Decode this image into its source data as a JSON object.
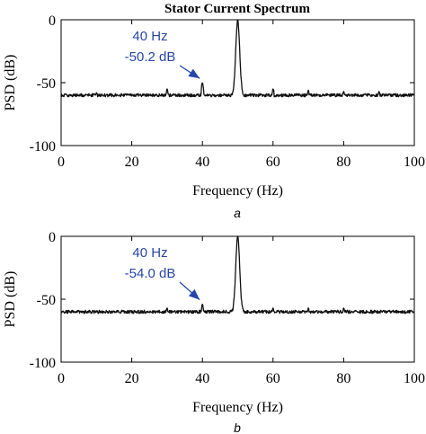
{
  "figure_title": "Stator Current Spectrum",
  "colors": {
    "trace": "#111111",
    "annotation": "#2747a8",
    "axes": "#000000"
  },
  "chart_data": [
    {
      "type": "line",
      "panel_label": "a",
      "xlabel": "Frequency (Hz)",
      "ylabel": "PSD (dB)",
      "xlim": [
        0,
        100
      ],
      "ylim": [
        -100,
        0
      ],
      "xticks": [
        0,
        20,
        40,
        60,
        80,
        100
      ],
      "yticks": [
        0,
        -50,
        -100
      ],
      "xtick_labels": [
        "0",
        "20",
        "40",
        "60",
        "80",
        "100"
      ],
      "ytick_labels": [
        "0",
        "-50",
        "-100"
      ],
      "grid": false,
      "peaks": [
        {
          "x": 5,
          "y": -70
        },
        {
          "x": 10,
          "y": -58
        },
        {
          "x": 15,
          "y": -70
        },
        {
          "x": 20,
          "y": -60
        },
        {
          "x": 25,
          "y": -70
        },
        {
          "x": 30,
          "y": -55
        },
        {
          "x": 35,
          "y": -70
        },
        {
          "x": 40,
          "y": -50.2
        },
        {
          "x": 45,
          "y": -68
        },
        {
          "x": 50,
          "y": 0
        },
        {
          "x": 55,
          "y": -70
        },
        {
          "x": 60,
          "y": -55
        },
        {
          "x": 65,
          "y": -70
        },
        {
          "x": 70,
          "y": -56
        },
        {
          "x": 75,
          "y": -72
        },
        {
          "x": 80,
          "y": -57
        },
        {
          "x": 85,
          "y": -70
        },
        {
          "x": 90,
          "y": -57
        },
        {
          "x": 95,
          "y": -72
        },
        {
          "x": 100,
          "y": -60
        }
      ],
      "annotation": {
        "line1": "40 Hz",
        "line2": "-50.2 dB",
        "x": 40,
        "y": -50.2
      }
    },
    {
      "type": "line",
      "panel_label": "b",
      "xlabel": "Frequency (Hz)",
      "ylabel": "PSD (dB)",
      "xlim": [
        0,
        100
      ],
      "ylim": [
        -100,
        0
      ],
      "xticks": [
        0,
        20,
        40,
        60,
        80,
        100
      ],
      "yticks": [
        0,
        -50,
        -100
      ],
      "xtick_labels": [
        "0",
        "20",
        "40",
        "60",
        "80",
        "100"
      ],
      "ytick_labels": [
        "0",
        "-50",
        "-100"
      ],
      "grid": false,
      "peaks": [
        {
          "x": 5,
          "y": -68
        },
        {
          "x": 10,
          "y": -60
        },
        {
          "x": 15,
          "y": -72
        },
        {
          "x": 20,
          "y": -62
        },
        {
          "x": 25,
          "y": -68
        },
        {
          "x": 30,
          "y": -57
        },
        {
          "x": 35,
          "y": -70
        },
        {
          "x": 40,
          "y": -54.0
        },
        {
          "x": 45,
          "y": -67
        },
        {
          "x": 50,
          "y": 0
        },
        {
          "x": 55,
          "y": -68
        },
        {
          "x": 60,
          "y": -57
        },
        {
          "x": 65,
          "y": -70
        },
        {
          "x": 70,
          "y": -57
        },
        {
          "x": 75,
          "y": -67
        },
        {
          "x": 80,
          "y": -57
        },
        {
          "x": 85,
          "y": -68
        },
        {
          "x": 90,
          "y": -63
        },
        {
          "x": 95,
          "y": -66
        },
        {
          "x": 100,
          "y": -62
        }
      ],
      "annotation": {
        "line1": "40 Hz",
        "line2": "-54.0 dB",
        "x": 40,
        "y": -54.0
      }
    }
  ]
}
